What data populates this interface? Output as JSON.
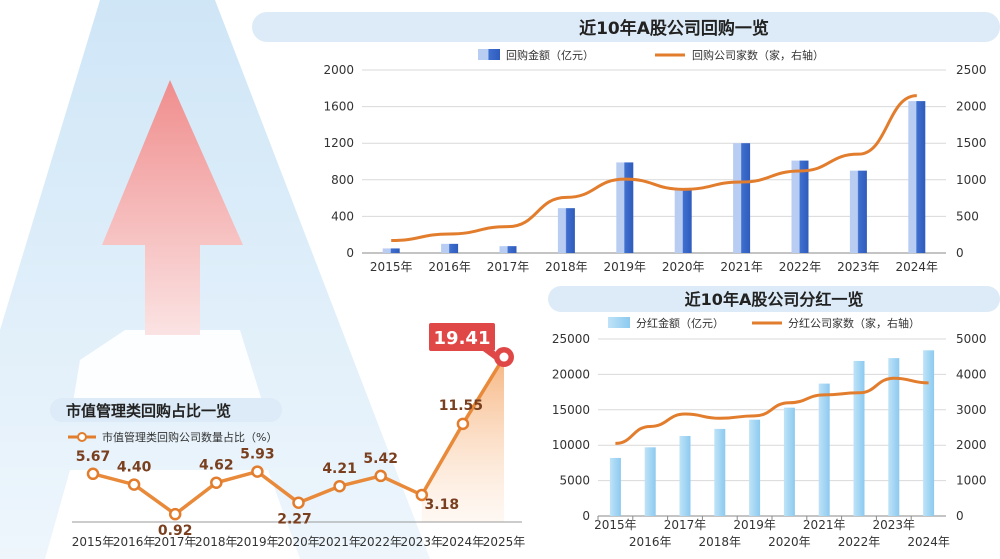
{
  "chart_data": [
    {
      "id": "buyback",
      "type": "bar+line",
      "title": "近10年A股公司回购一览",
      "categories": [
        "2015年",
        "2016年",
        "2017年",
        "2018年",
        "2019年",
        "2020年",
        "2021年",
        "2022年",
        "2023年",
        "2024年"
      ],
      "series": [
        {
          "name": "回购金额（亿元）",
          "type": "bar",
          "axis": "left",
          "values": [
            50,
            100,
            75,
            490,
            990,
            690,
            1200,
            1010,
            900,
            1660
          ]
        },
        {
          "name": "回购公司家数（家，右轴）",
          "type": "line",
          "axis": "right",
          "values": [
            170,
            260,
            360,
            760,
            1010,
            870,
            970,
            1120,
            1350,
            2150
          ]
        }
      ],
      "y_left": {
        "range": [
          0,
          2000
        ],
        "ticks": [
          "0",
          "400",
          "800",
          "1200",
          "1600",
          "2000"
        ]
      },
      "y_right": {
        "range": [
          0,
          2500
        ],
        "ticks": [
          "0",
          "500",
          "1000",
          "1500",
          "2000",
          "2500"
        ]
      },
      "grid": true,
      "legend": "top"
    },
    {
      "id": "dividend",
      "type": "bar+line",
      "title": "近10年A股公司分红一览",
      "categories": [
        "2015年",
        "2016年",
        "2017年",
        "2018年",
        "2019年",
        "2020年",
        "2021年",
        "2022年",
        "2023年",
        "2024年"
      ],
      "series": [
        {
          "name": "分红金额（亿元）",
          "type": "bar",
          "axis": "left",
          "values": [
            8200,
            9700,
            11300,
            12300,
            13600,
            15300,
            18700,
            21900,
            22300,
            23400
          ]
        },
        {
          "name": "分红公司家数（家，右轴）",
          "type": "line",
          "axis": "right",
          "values": [
            2050,
            2530,
            2880,
            2760,
            2830,
            3200,
            3420,
            3480,
            3890,
            3760
          ]
        }
      ],
      "y_left": {
        "range": [
          0,
          25000
        ],
        "ticks": [
          "0",
          "5000",
          "10000",
          "15000",
          "20000",
          "25000"
        ]
      },
      "y_right": {
        "range": [
          0,
          5000
        ],
        "ticks": [
          "0",
          "1000",
          "2000",
          "3000",
          "4000",
          "5000"
        ]
      },
      "grid": true,
      "legend": "top"
    },
    {
      "id": "mktcap",
      "type": "line",
      "title": "市值管理类回购占比一览",
      "categories": [
        "2015年",
        "2016年",
        "2017年",
        "2018年",
        "2019年",
        "2020年",
        "2021年",
        "2022年",
        "2023年",
        "2024年",
        "2025年"
      ],
      "series": [
        {
          "name": "市值管理类回购公司数量占比（%）",
          "values": [
            5.67,
            4.4,
            0.92,
            4.62,
            5.93,
            2.27,
            4.21,
            5.42,
            3.18,
            11.55,
            19.41
          ]
        }
      ],
      "labels": [
        "5.67",
        "4.40",
        "0.92",
        "4.62",
        "5.93",
        "2.27",
        "4.21",
        "5.42",
        "3.18",
        "11.55",
        "19.41"
      ],
      "highlight_label": "19.41",
      "legend": "top-left"
    }
  ],
  "colors": {
    "bar_blue": "#3f6fcf",
    "bar_light_blue": "#9fd4f0",
    "line_orange": "#e27d2e",
    "highlight_red": "#e04848",
    "label_brown": "#7a3f1e",
    "banner_blue": "#dcebf7",
    "arrow_pink": "#f4a3a3"
  }
}
